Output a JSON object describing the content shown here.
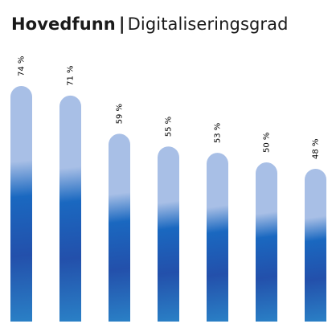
{
  "header": {
    "title": "Hovedfunn",
    "separator": "|",
    "subtitle": "Digitaliseringsgrad"
  },
  "chart_data": {
    "type": "bar",
    "categories": [
      "",
      "",
      "",
      "",
      "",
      "",
      ""
    ],
    "values": [
      74,
      71,
      59,
      55,
      53,
      50,
      48
    ],
    "data_labels": [
      "74 %",
      "71 %",
      "59 %",
      "55 %",
      "53 %",
      "50 %",
      "48 %"
    ],
    "ylim": [
      0,
      100
    ],
    "grid": false,
    "legend": "none",
    "colors": {
      "bar_top": "#a8bfe6",
      "bar_mid": "#1a68c0",
      "bar_deep": "#2350ab",
      "bar_bottom": "#2a80c6",
      "label": "#000000"
    }
  }
}
